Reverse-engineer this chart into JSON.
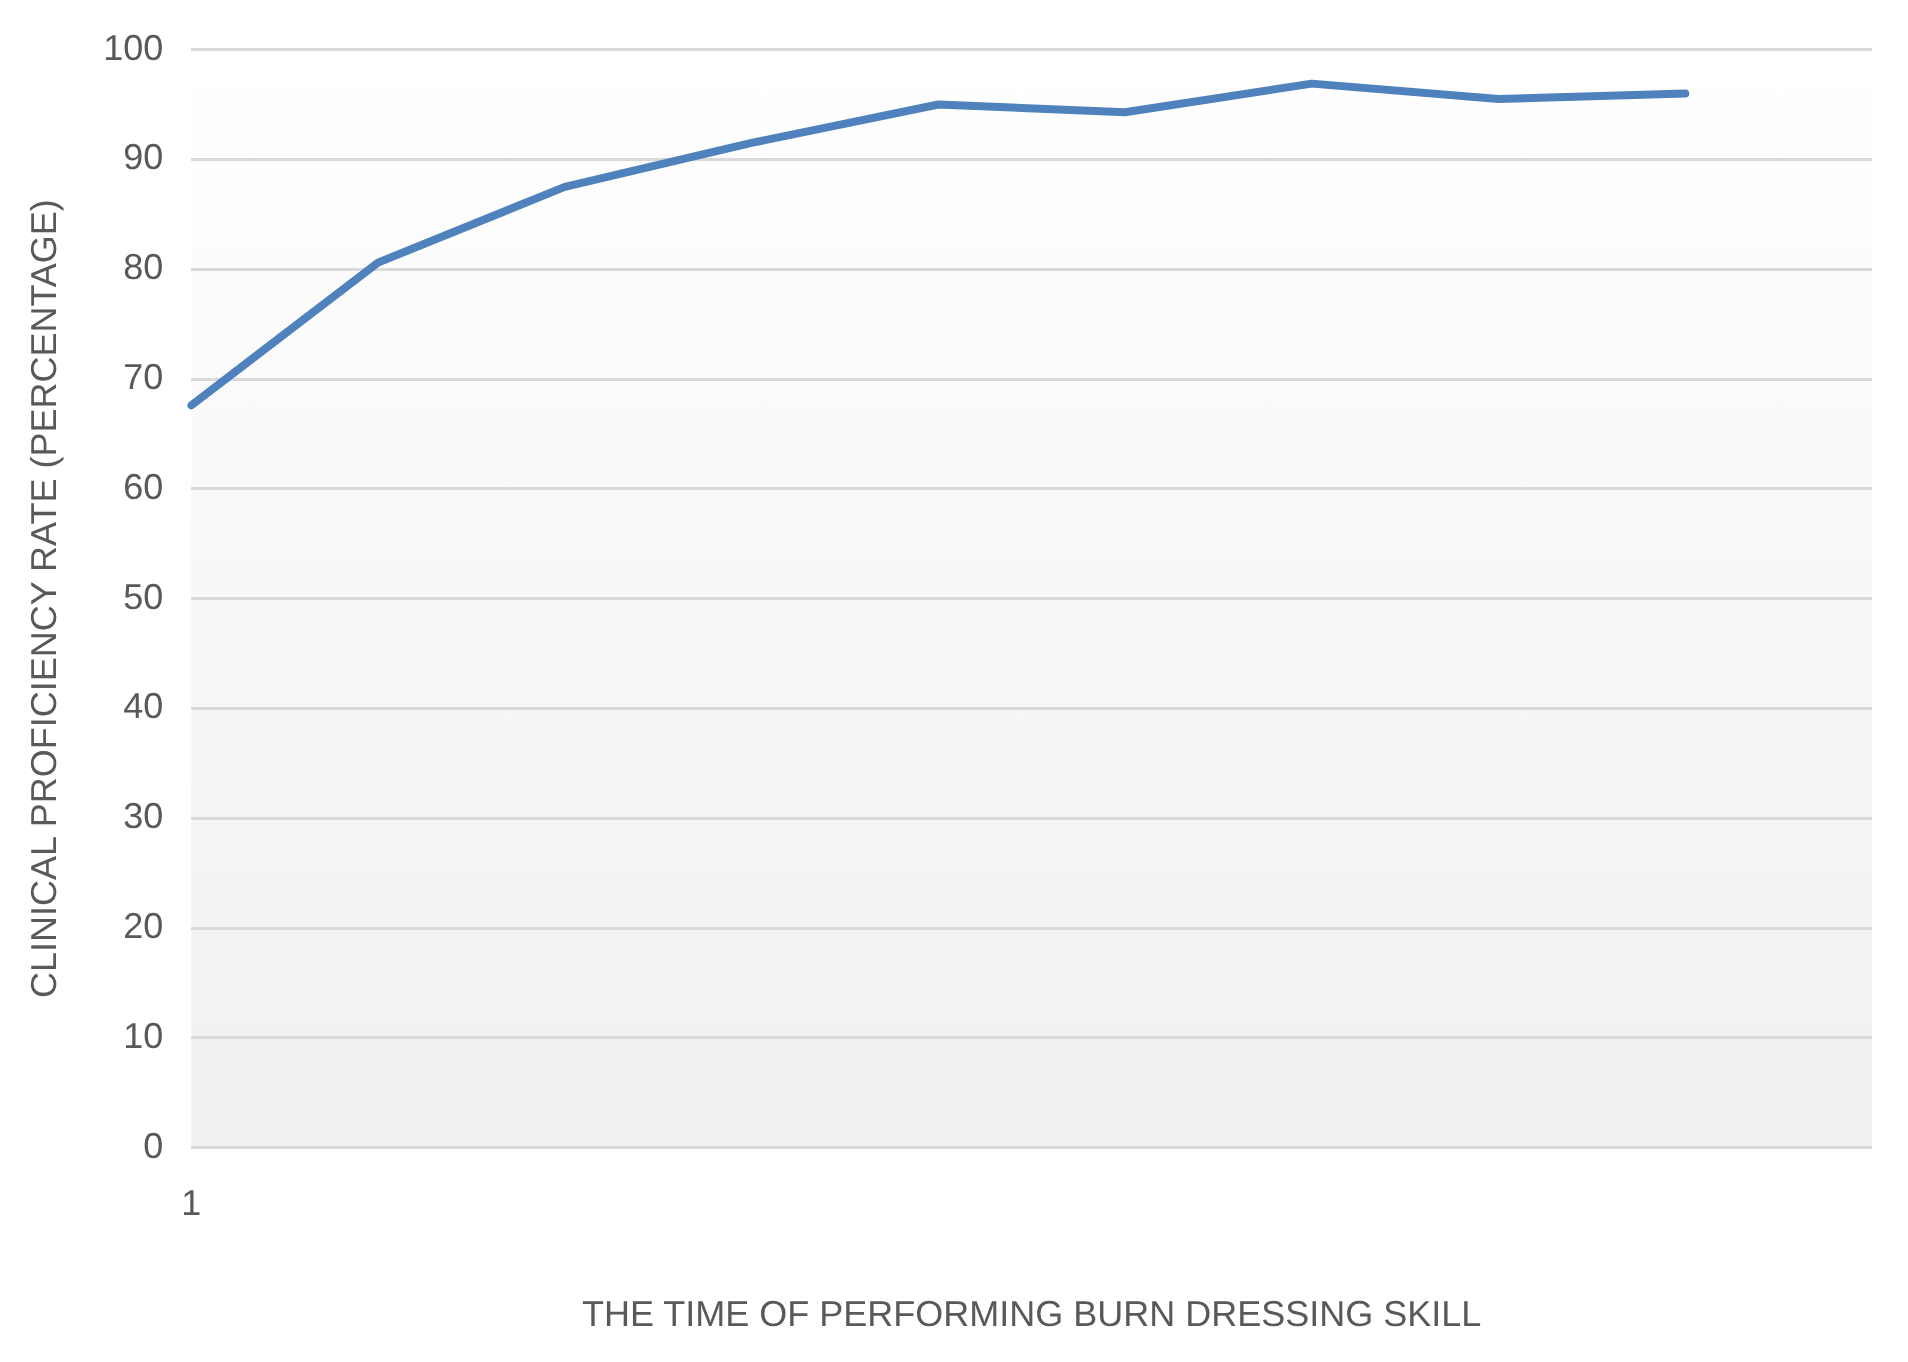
{
  "chart_data": {
    "type": "line",
    "xlabel": "THE TIME OF PERFORMING BURN DRESSING SKILL",
    "ylabel": "CLINICAL PROFICIENCY RATE (PERCENTAGE)",
    "categories": [
      "1",
      null,
      null,
      null,
      null,
      null,
      null,
      null,
      null,
      null
    ],
    "series": [
      {
        "color": "#4f81bd",
        "values": [
          67.6,
          80.6,
          87.5,
          91.5,
          95.0,
          94.3,
          96.9,
          95.5,
          96.0,
          null
        ]
      }
    ],
    "ylim": [
      0,
      100
    ],
    "yticks": [
      0,
      10,
      20,
      30,
      40,
      50,
      60,
      70,
      80,
      90,
      100
    ],
    "grid": "y",
    "legend": false,
    "marker": "none",
    "line_style": "solid"
  }
}
